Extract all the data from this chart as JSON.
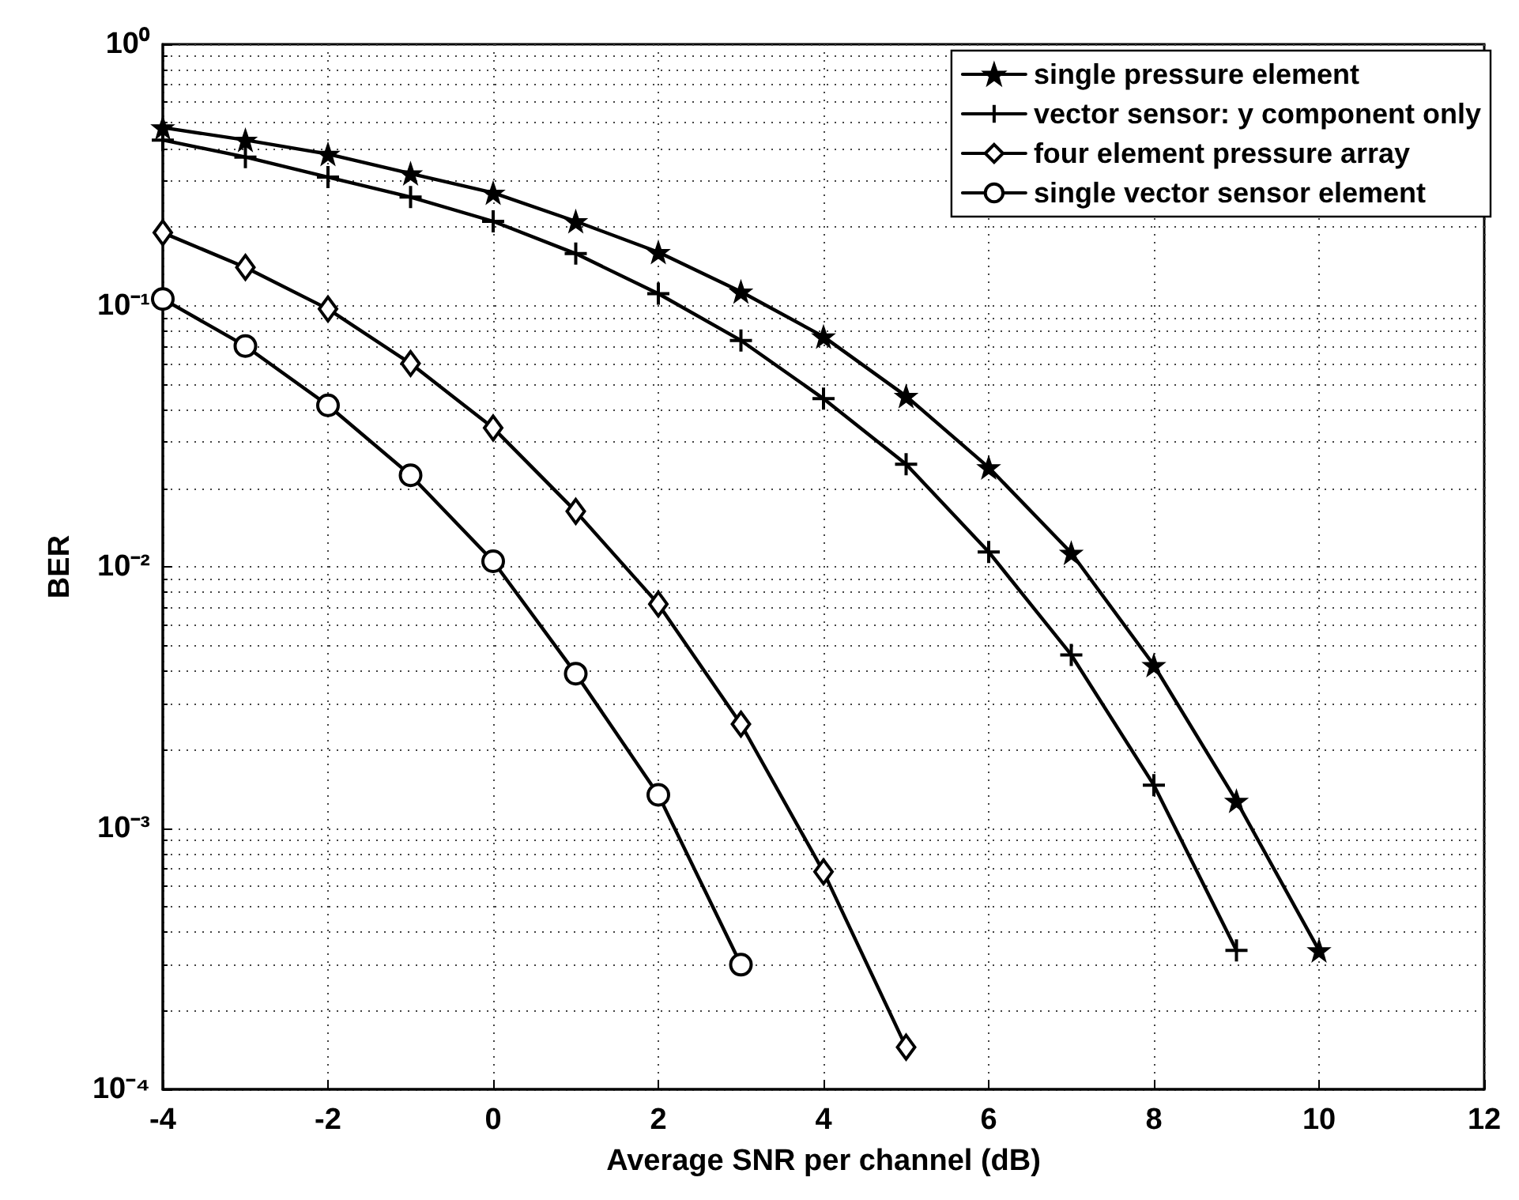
{
  "chart_data": {
    "type": "line",
    "xlabel": "Average SNR per channel (dB)",
    "ylabel": "BER",
    "log": "y",
    "grid": true,
    "legend": "top right",
    "line_style": "solid",
    "xlim": [
      -4,
      12
    ],
    "xticks": [
      -4,
      -2,
      0,
      2,
      4,
      6,
      8,
      10,
      12
    ],
    "ylim": [
      0.0001,
      1
    ],
    "yticks": [
      {
        "value": 0.0001,
        "label": "10⁻⁴"
      },
      {
        "value": 0.001,
        "label": "10⁻³"
      },
      {
        "value": 0.01,
        "label": "10⁻²"
      },
      {
        "value": 0.1,
        "label": "10⁻¹"
      },
      {
        "value": 1,
        "label": "10⁰"
      }
    ],
    "series": [
      {
        "name": "single pressure element",
        "color": "#000000",
        "marker": "star",
        "x": [
          -4,
          -3,
          -2,
          -1,
          0,
          1,
          2,
          3,
          4,
          5,
          6,
          7,
          8,
          9,
          10
        ],
        "values": [
          0.48,
          0.43,
          0.38,
          0.32,
          0.27,
          0.21,
          0.16,
          0.113,
          0.076,
          0.045,
          0.024,
          0.0113,
          0.0042,
          0.00127,
          0.00034
        ]
      },
      {
        "name": "vector sensor: y component only",
        "color": "#000000",
        "marker": "cross",
        "x": [
          -4,
          -3,
          -2,
          -1,
          0,
          1,
          2,
          3,
          4,
          5,
          6,
          7,
          8,
          9
        ],
        "values": [
          0.43,
          0.37,
          0.31,
          0.26,
          0.21,
          0.158,
          0.111,
          0.0735,
          0.044,
          0.0247,
          0.0114,
          0.0046,
          0.00146,
          0.00034
        ]
      },
      {
        "name": "four element pressure array",
        "color": "#000000",
        "marker": "diamond",
        "x": [
          -4,
          -3,
          -2,
          -1,
          0,
          1,
          2,
          3,
          4,
          5
        ],
        "values": [
          0.19,
          0.14,
          0.097,
          0.06,
          0.034,
          0.0163,
          0.0072,
          0.0025,
          0.00068,
          0.000145
        ]
      },
      {
        "name": "single vector sensor element",
        "color": "#000000",
        "marker": "circle",
        "x": [
          -4,
          -3,
          -2,
          -1,
          0,
          1,
          2,
          3
        ],
        "values": [
          0.106,
          0.07,
          0.0415,
          0.0224,
          0.0105,
          0.0039,
          0.00134,
          0.0003
        ]
      }
    ]
  }
}
